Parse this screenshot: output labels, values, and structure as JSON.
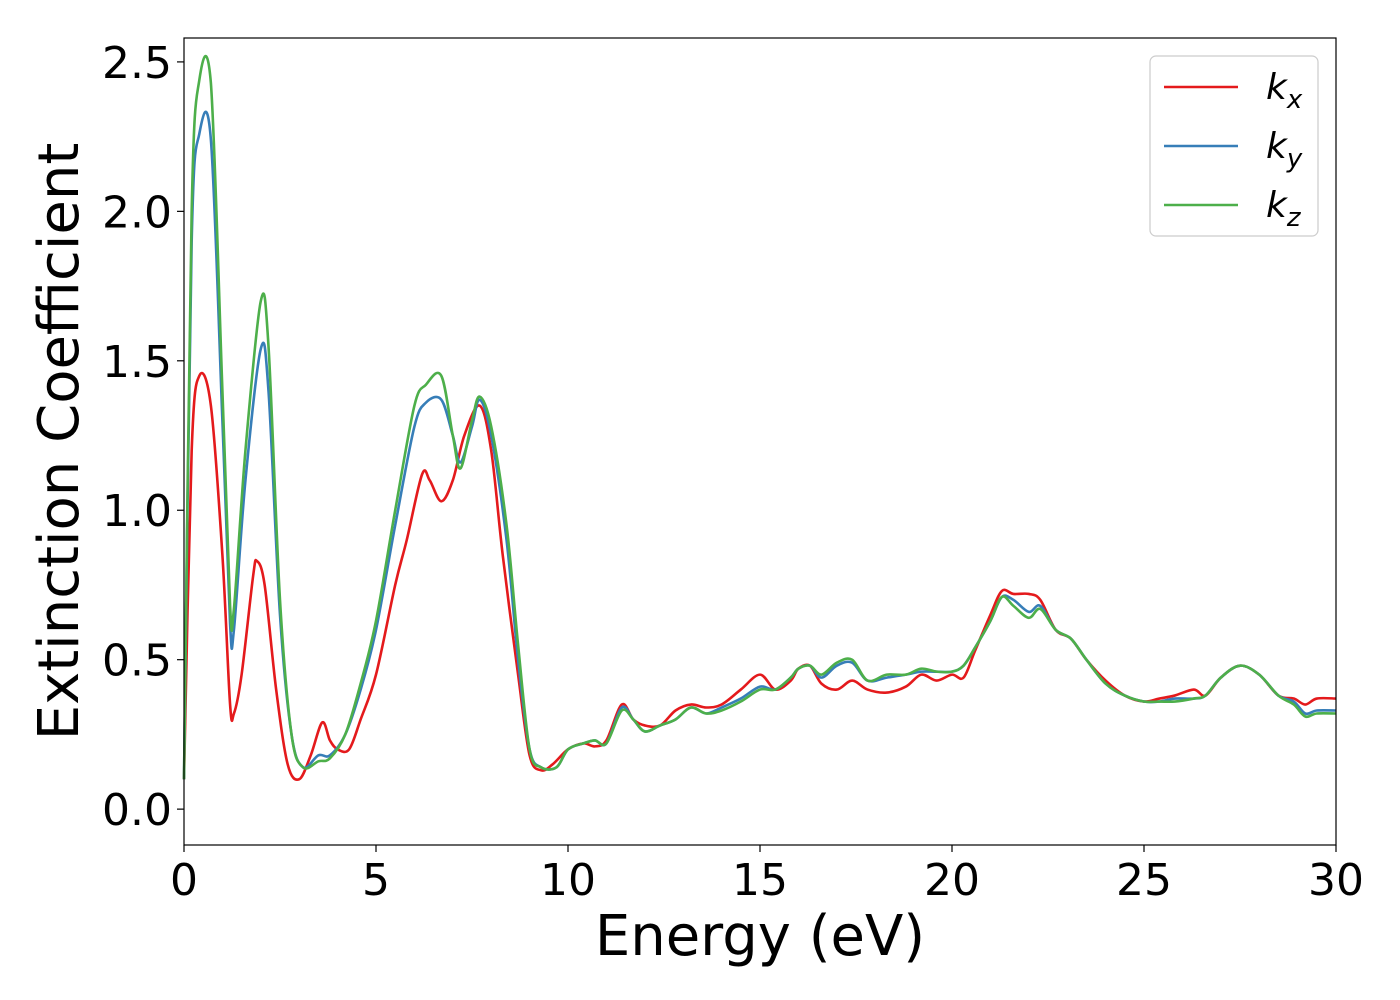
{
  "chart_data": {
    "type": "line",
    "title": "",
    "xlabel": "Energy (eV)",
    "ylabel": "Extinction Coefficient",
    "xlim": [
      0,
      30
    ],
    "ylim": [
      -0.12,
      2.58
    ],
    "x_ticks": [
      0,
      5,
      10,
      15,
      20,
      25,
      30
    ],
    "y_ticks": [
      0.0,
      0.5,
      1.0,
      1.5,
      2.0,
      2.5
    ],
    "x_tick_labels": [
      "0",
      "5",
      "10",
      "15",
      "20",
      "25",
      "30"
    ],
    "y_tick_labels": [
      "0.0",
      "0.5",
      "1.0",
      "1.5",
      "2.0",
      "2.5"
    ],
    "grid": false,
    "legend_position": "top-right",
    "series": [
      {
        "name": "k_x",
        "label_base": "k",
        "label_sub": "x",
        "color": "#e41a1c",
        "points": [
          [
            0,
            0.1
          ],
          [
            0.2,
            1.2
          ],
          [
            0.4,
            1.45
          ],
          [
            0.7,
            1.35
          ],
          [
            1.0,
            0.85
          ],
          [
            1.2,
            0.35
          ],
          [
            1.3,
            0.32
          ],
          [
            1.5,
            0.45
          ],
          [
            1.8,
            0.78
          ],
          [
            1.9,
            0.83
          ],
          [
            2.1,
            0.75
          ],
          [
            2.4,
            0.4
          ],
          [
            2.7,
            0.15
          ],
          [
            3.0,
            0.1
          ],
          [
            3.3,
            0.18
          ],
          [
            3.6,
            0.29
          ],
          [
            3.8,
            0.23
          ],
          [
            4.0,
            0.2
          ],
          [
            4.3,
            0.2
          ],
          [
            4.6,
            0.3
          ],
          [
            5.0,
            0.45
          ],
          [
            5.5,
            0.75
          ],
          [
            5.8,
            0.9
          ],
          [
            6.2,
            1.12
          ],
          [
            6.4,
            1.1
          ],
          [
            6.7,
            1.03
          ],
          [
            7.0,
            1.1
          ],
          [
            7.3,
            1.25
          ],
          [
            7.7,
            1.35
          ],
          [
            8.0,
            1.2
          ],
          [
            8.3,
            0.85
          ],
          [
            8.7,
            0.45
          ],
          [
            9.0,
            0.18
          ],
          [
            9.3,
            0.13
          ],
          [
            9.6,
            0.15
          ],
          [
            10.0,
            0.2
          ],
          [
            10.4,
            0.22
          ],
          [
            10.7,
            0.21
          ],
          [
            11.0,
            0.23
          ],
          [
            11.4,
            0.35
          ],
          [
            11.7,
            0.3
          ],
          [
            12.0,
            0.28
          ],
          [
            12.4,
            0.28
          ],
          [
            12.8,
            0.33
          ],
          [
            13.2,
            0.35
          ],
          [
            13.6,
            0.34
          ],
          [
            14.0,
            0.35
          ],
          [
            14.5,
            0.4
          ],
          [
            15.0,
            0.45
          ],
          [
            15.4,
            0.4
          ],
          [
            15.8,
            0.43
          ],
          [
            16.0,
            0.47
          ],
          [
            16.3,
            0.48
          ],
          [
            16.6,
            0.42
          ],
          [
            17.0,
            0.4
          ],
          [
            17.4,
            0.43
          ],
          [
            17.8,
            0.4
          ],
          [
            18.3,
            0.39
          ],
          [
            18.8,
            0.41
          ],
          [
            19.2,
            0.45
          ],
          [
            19.6,
            0.43
          ],
          [
            20.0,
            0.45
          ],
          [
            20.3,
            0.44
          ],
          [
            20.6,
            0.53
          ],
          [
            21.0,
            0.65
          ],
          [
            21.3,
            0.73
          ],
          [
            21.6,
            0.72
          ],
          [
            22.0,
            0.72
          ],
          [
            22.3,
            0.7
          ],
          [
            22.7,
            0.6
          ],
          [
            23.1,
            0.57
          ],
          [
            23.5,
            0.5
          ],
          [
            24.0,
            0.43
          ],
          [
            24.5,
            0.38
          ],
          [
            25.0,
            0.36
          ],
          [
            25.4,
            0.37
          ],
          [
            25.8,
            0.38
          ],
          [
            26.3,
            0.4
          ],
          [
            26.6,
            0.38
          ],
          [
            27.0,
            0.44
          ],
          [
            27.5,
            0.48
          ],
          [
            28.0,
            0.45
          ],
          [
            28.5,
            0.38
          ],
          [
            28.9,
            0.37
          ],
          [
            29.2,
            0.35
          ],
          [
            29.5,
            0.37
          ],
          [
            30.0,
            0.37
          ]
        ]
      },
      {
        "name": "k_y",
        "label_base": "k",
        "label_sub": "y",
        "color": "#377eb8",
        "points": [
          [
            0,
            0.1
          ],
          [
            0.2,
            1.9
          ],
          [
            0.4,
            2.26
          ],
          [
            0.7,
            2.24
          ],
          [
            1.0,
            1.3
          ],
          [
            1.2,
            0.62
          ],
          [
            1.3,
            0.6
          ],
          [
            1.6,
            1.1
          ],
          [
            2.0,
            1.54
          ],
          [
            2.2,
            1.4
          ],
          [
            2.5,
            0.65
          ],
          [
            2.8,
            0.25
          ],
          [
            3.1,
            0.14
          ],
          [
            3.5,
            0.18
          ],
          [
            3.8,
            0.18
          ],
          [
            4.2,
            0.25
          ],
          [
            4.6,
            0.4
          ],
          [
            5.0,
            0.6
          ],
          [
            5.5,
            0.95
          ],
          [
            6.0,
            1.28
          ],
          [
            6.3,
            1.36
          ],
          [
            6.7,
            1.37
          ],
          [
            7.0,
            1.25
          ],
          [
            7.2,
            1.16
          ],
          [
            7.5,
            1.28
          ],
          [
            7.7,
            1.37
          ],
          [
            8.0,
            1.25
          ],
          [
            8.4,
            0.9
          ],
          [
            8.7,
            0.5
          ],
          [
            9.0,
            0.2
          ],
          [
            9.3,
            0.14
          ],
          [
            9.7,
            0.14
          ],
          [
            10.0,
            0.2
          ],
          [
            10.4,
            0.22
          ],
          [
            10.7,
            0.23
          ],
          [
            11.0,
            0.22
          ],
          [
            11.4,
            0.34
          ],
          [
            11.7,
            0.3
          ],
          [
            12.0,
            0.26
          ],
          [
            12.4,
            0.28
          ],
          [
            12.8,
            0.3
          ],
          [
            13.2,
            0.34
          ],
          [
            13.6,
            0.32
          ],
          [
            14.0,
            0.34
          ],
          [
            14.5,
            0.37
          ],
          [
            15.0,
            0.41
          ],
          [
            15.4,
            0.4
          ],
          [
            15.8,
            0.44
          ],
          [
            16.0,
            0.47
          ],
          [
            16.3,
            0.48
          ],
          [
            16.6,
            0.44
          ],
          [
            17.0,
            0.48
          ],
          [
            17.4,
            0.49
          ],
          [
            17.8,
            0.43
          ],
          [
            18.3,
            0.44
          ],
          [
            18.8,
            0.45
          ],
          [
            19.2,
            0.46
          ],
          [
            19.6,
            0.46
          ],
          [
            20.0,
            0.46
          ],
          [
            20.3,
            0.48
          ],
          [
            20.6,
            0.54
          ],
          [
            21.0,
            0.63
          ],
          [
            21.3,
            0.71
          ],
          [
            21.6,
            0.7
          ],
          [
            22.0,
            0.66
          ],
          [
            22.3,
            0.68
          ],
          [
            22.7,
            0.6
          ],
          [
            23.1,
            0.57
          ],
          [
            23.5,
            0.5
          ],
          [
            24.0,
            0.42
          ],
          [
            24.5,
            0.38
          ],
          [
            25.0,
            0.36
          ],
          [
            25.4,
            0.36
          ],
          [
            25.8,
            0.37
          ],
          [
            26.3,
            0.37
          ],
          [
            26.6,
            0.38
          ],
          [
            27.0,
            0.44
          ],
          [
            27.5,
            0.48
          ],
          [
            28.0,
            0.45
          ],
          [
            28.5,
            0.38
          ],
          [
            28.9,
            0.36
          ],
          [
            29.2,
            0.32
          ],
          [
            29.5,
            0.33
          ],
          [
            30.0,
            0.33
          ]
        ]
      },
      {
        "name": "k_z",
        "label_base": "k",
        "label_sub": "z",
        "color": "#4daf4a",
        "points": [
          [
            0,
            0.1
          ],
          [
            0.2,
            2.0
          ],
          [
            0.4,
            2.44
          ],
          [
            0.7,
            2.43
          ],
          [
            1.0,
            1.4
          ],
          [
            1.2,
            0.68
          ],
          [
            1.3,
            0.67
          ],
          [
            1.6,
            1.2
          ],
          [
            2.0,
            1.7
          ],
          [
            2.2,
            1.55
          ],
          [
            2.5,
            0.7
          ],
          [
            2.8,
            0.25
          ],
          [
            3.1,
            0.14
          ],
          [
            3.5,
            0.16
          ],
          [
            3.8,
            0.17
          ],
          [
            4.2,
            0.25
          ],
          [
            4.6,
            0.42
          ],
          [
            5.0,
            0.63
          ],
          [
            5.5,
            1.0
          ],
          [
            6.0,
            1.35
          ],
          [
            6.3,
            1.42
          ],
          [
            6.7,
            1.45
          ],
          [
            7.0,
            1.25
          ],
          [
            7.2,
            1.14
          ],
          [
            7.5,
            1.3
          ],
          [
            7.7,
            1.38
          ],
          [
            8.0,
            1.28
          ],
          [
            8.4,
            0.95
          ],
          [
            8.7,
            0.55
          ],
          [
            9.0,
            0.2
          ],
          [
            9.3,
            0.14
          ],
          [
            9.7,
            0.14
          ],
          [
            10.0,
            0.2
          ],
          [
            10.4,
            0.22
          ],
          [
            10.7,
            0.23
          ],
          [
            11.0,
            0.22
          ],
          [
            11.4,
            0.33
          ],
          [
            11.7,
            0.3
          ],
          [
            12.0,
            0.26
          ],
          [
            12.4,
            0.28
          ],
          [
            12.8,
            0.3
          ],
          [
            13.2,
            0.34
          ],
          [
            13.6,
            0.32
          ],
          [
            14.0,
            0.33
          ],
          [
            14.5,
            0.36
          ],
          [
            15.0,
            0.4
          ],
          [
            15.4,
            0.4
          ],
          [
            15.8,
            0.44
          ],
          [
            16.0,
            0.47
          ],
          [
            16.3,
            0.48
          ],
          [
            16.6,
            0.45
          ],
          [
            17.0,
            0.49
          ],
          [
            17.4,
            0.5
          ],
          [
            17.8,
            0.43
          ],
          [
            18.3,
            0.45
          ],
          [
            18.8,
            0.45
          ],
          [
            19.2,
            0.47
          ],
          [
            19.6,
            0.46
          ],
          [
            20.0,
            0.46
          ],
          [
            20.3,
            0.48
          ],
          [
            20.6,
            0.54
          ],
          [
            21.0,
            0.63
          ],
          [
            21.3,
            0.71
          ],
          [
            21.6,
            0.68
          ],
          [
            22.0,
            0.64
          ],
          [
            22.3,
            0.67
          ],
          [
            22.7,
            0.6
          ],
          [
            23.1,
            0.57
          ],
          [
            23.5,
            0.5
          ],
          [
            24.0,
            0.42
          ],
          [
            24.5,
            0.38
          ],
          [
            25.0,
            0.36
          ],
          [
            25.4,
            0.36
          ],
          [
            25.8,
            0.36
          ],
          [
            26.3,
            0.37
          ],
          [
            26.6,
            0.38
          ],
          [
            27.0,
            0.44
          ],
          [
            27.5,
            0.48
          ],
          [
            28.0,
            0.45
          ],
          [
            28.5,
            0.38
          ],
          [
            28.9,
            0.35
          ],
          [
            29.2,
            0.31
          ],
          [
            29.5,
            0.32
          ],
          [
            30.0,
            0.32
          ]
        ]
      }
    ]
  }
}
